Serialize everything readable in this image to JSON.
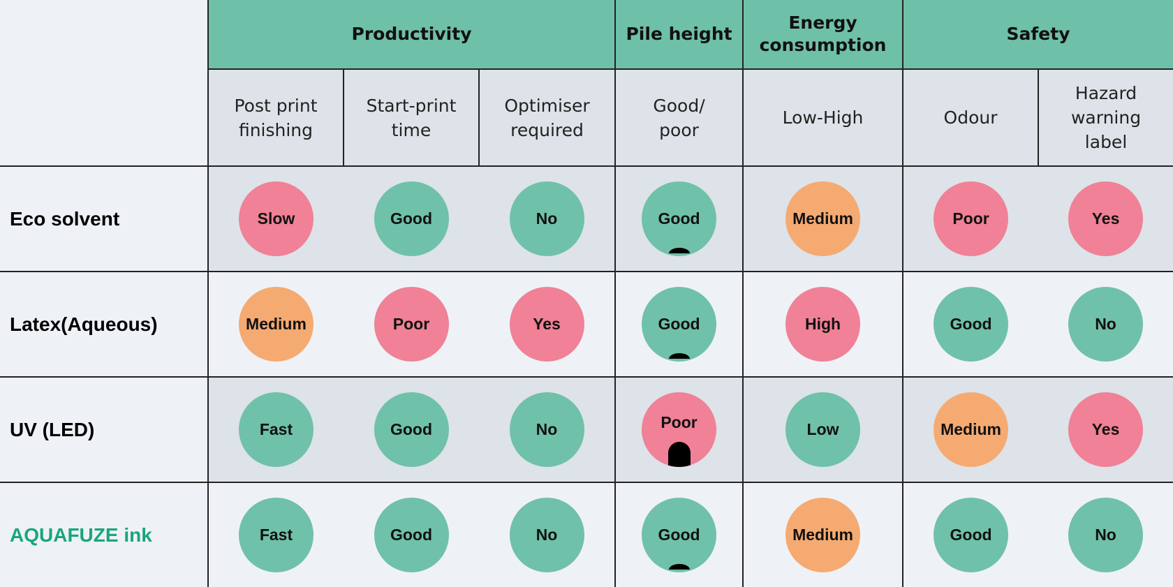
{
  "colors": {
    "good": "#70c1a9",
    "poor": "#f08196",
    "medium": "#f5aa72",
    "header": "#6fc0a8",
    "brand": "#1aa67a"
  },
  "groups": [
    {
      "label": "Productivity",
      "span": 3
    },
    {
      "label": "Pile height",
      "span": 1
    },
    {
      "label": "Energy consumption",
      "span": 1
    },
    {
      "label": "Safety",
      "span": 2
    }
  ],
  "subheaders": [
    "Post print finishing",
    "Start-print time",
    "Optimiser required",
    "Good/ poor",
    "Low-High",
    "Odour",
    "Hazard warning label"
  ],
  "rows": [
    {
      "label": "Eco solvent",
      "cells": [
        [
          "Slow",
          "poor"
        ],
        [
          "Good",
          "good"
        ],
        [
          "No",
          "good"
        ],
        [
          "Good",
          "good",
          "small"
        ],
        [
          "Medium",
          "medium"
        ],
        [
          "Poor",
          "poor"
        ],
        [
          "Yes",
          "poor"
        ]
      ]
    },
    {
      "label": "Latex(Aqueous)",
      "cells": [
        [
          "Medium",
          "medium"
        ],
        [
          "Poor",
          "poor"
        ],
        [
          "Yes",
          "poor"
        ],
        [
          "Good",
          "good",
          "small"
        ],
        [
          "High",
          "poor"
        ],
        [
          "Good",
          "good"
        ],
        [
          "No",
          "good"
        ]
      ]
    },
    {
      "label": "UV (LED)",
      "cells": [
        [
          "Fast",
          "good"
        ],
        [
          "Good",
          "good"
        ],
        [
          "No",
          "good"
        ],
        [
          "Poor",
          "poor",
          "large"
        ],
        [
          "Low",
          "good"
        ],
        [
          "Medium",
          "medium"
        ],
        [
          "Yes",
          "poor"
        ]
      ]
    },
    {
      "label": "AQUAFUZE ink",
      "highlight": true,
      "cells": [
        [
          "Fast",
          "good"
        ],
        [
          "Good",
          "good"
        ],
        [
          "No",
          "good"
        ],
        [
          "Good",
          "good",
          "small"
        ],
        [
          "Medium",
          "medium"
        ],
        [
          "Good",
          "good"
        ],
        [
          "No",
          "good"
        ]
      ]
    }
  ]
}
